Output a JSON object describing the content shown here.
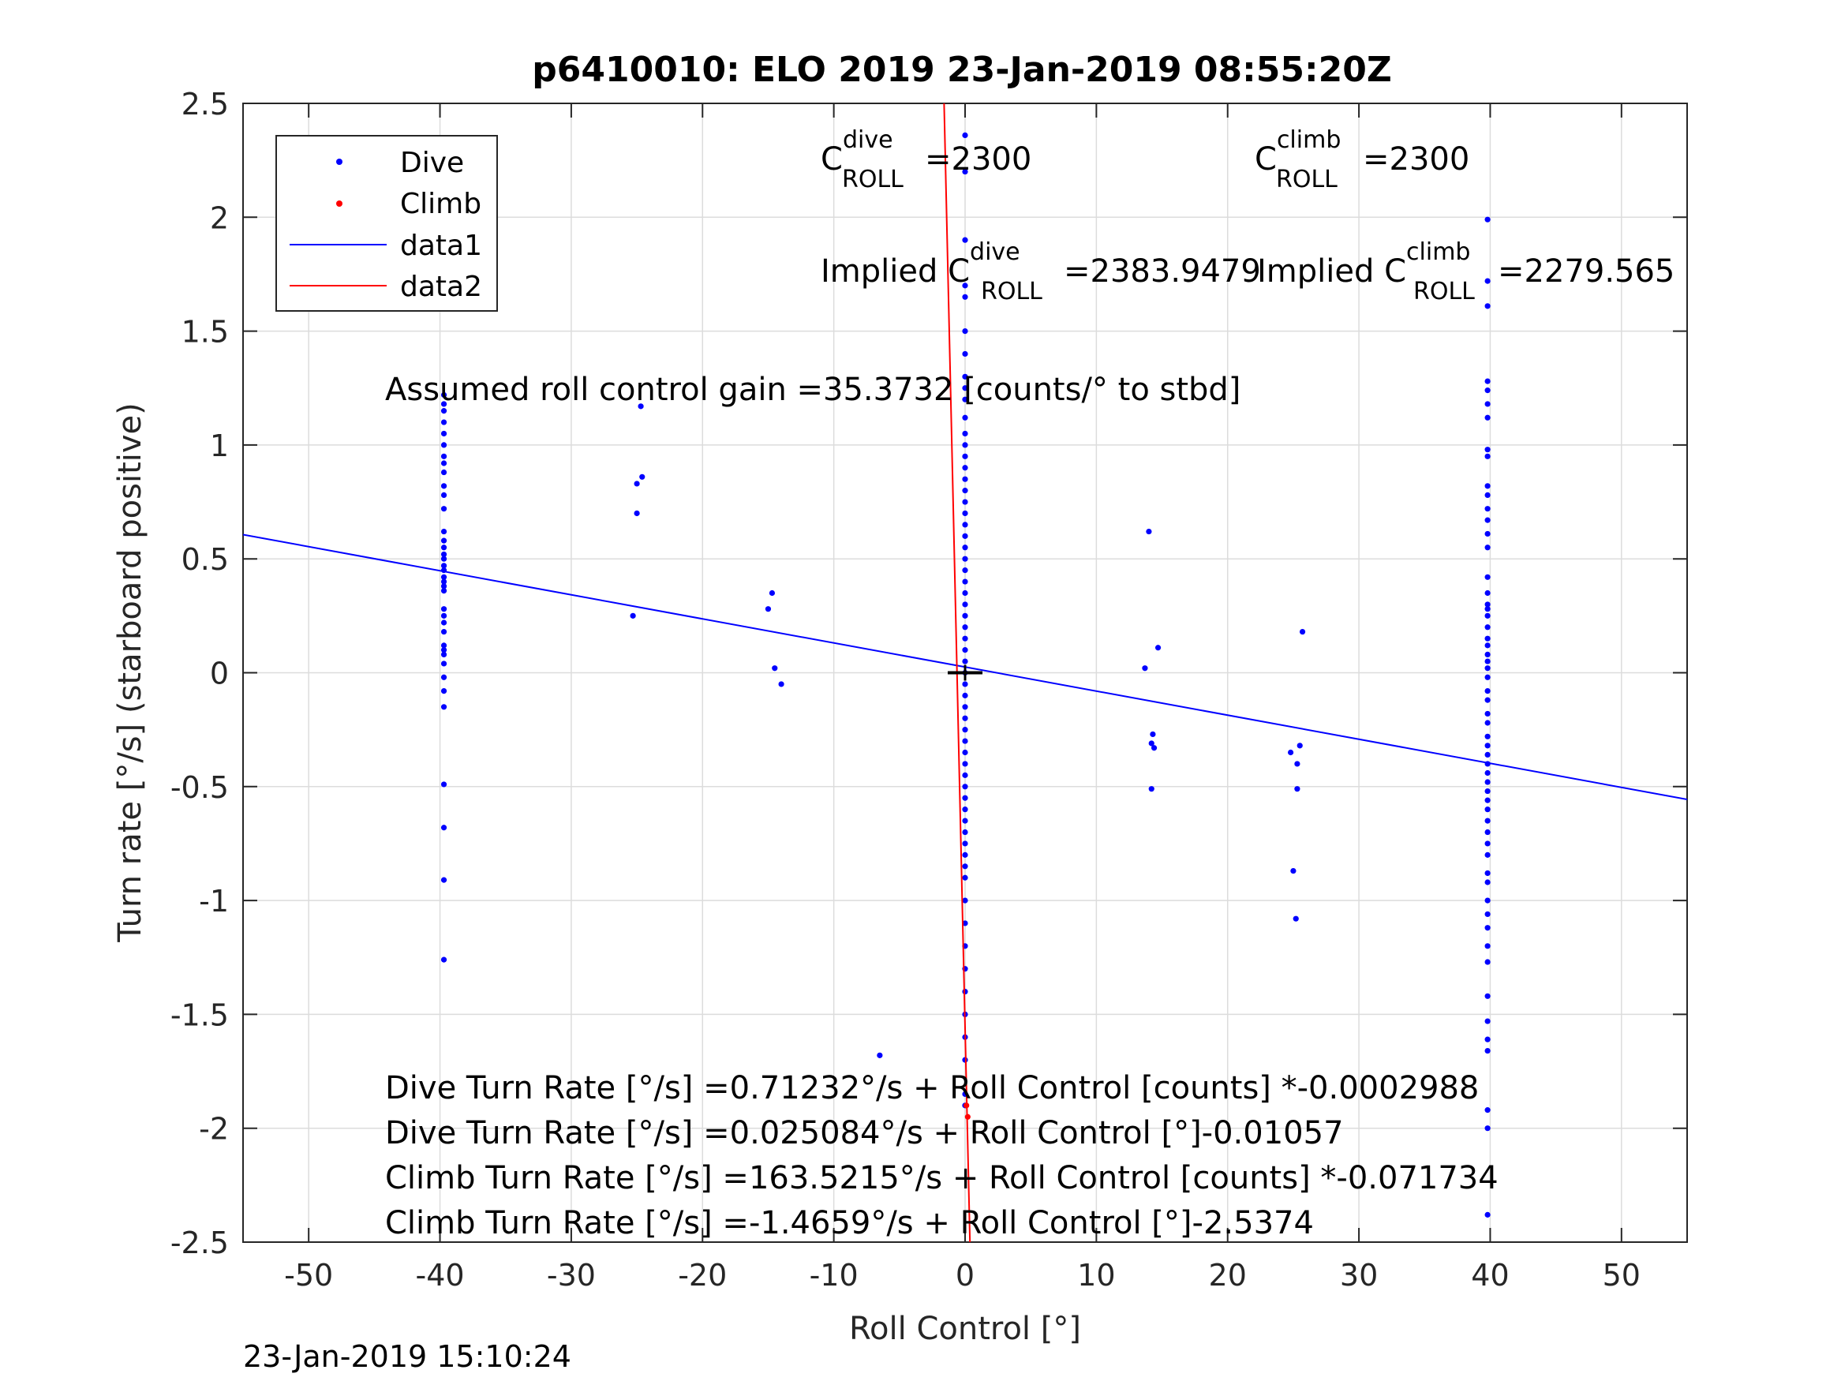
{
  "chart_data": {
    "type": "scatter",
    "title": "p6410010: ELO 2019 23-Jan-2019 08:55:20Z",
    "xlabel": "Roll Control [°]",
    "ylabel": "Turn rate [°/s] (starboard positive)",
    "xlim": [
      -55,
      55
    ],
    "ylim": [
      -2.5,
      2.5
    ],
    "xticks": [
      -50,
      -40,
      -30,
      -20,
      -10,
      0,
      10,
      20,
      30,
      40,
      50
    ],
    "yticks": [
      -2.5,
      -2,
      -1.5,
      -1,
      -0.5,
      0,
      0.5,
      1,
      1.5,
      2,
      2.5
    ],
    "xtick_labels": [
      "-50",
      "-40",
      "-30",
      "-20",
      "-10",
      "0",
      "10",
      "20",
      "30",
      "40",
      "50"
    ],
    "ytick_labels": [
      "-2.5",
      "-2",
      "-1.5",
      "-1",
      "-0.5",
      "0",
      "0.5",
      "1",
      "1.5",
      "2",
      "2.5"
    ],
    "grid": true,
    "legend_position": "top-left",
    "series": [
      {
        "name": "Dive",
        "kind": "scatter",
        "color": "#0000ff",
        "points": [
          [
            -39.7,
            1.22
          ],
          [
            -39.7,
            1.18
          ],
          [
            -39.7,
            1.15
          ],
          [
            -39.7,
            1.1
          ],
          [
            -39.7,
            1.05
          ],
          [
            -39.7,
            1.0
          ],
          [
            -39.7,
            0.95
          ],
          [
            -39.7,
            0.92
          ],
          [
            -39.7,
            0.88
          ],
          [
            -39.7,
            0.82
          ],
          [
            -39.7,
            0.78
          ],
          [
            -39.7,
            0.72
          ],
          [
            -39.7,
            0.62
          ],
          [
            -39.7,
            0.58
          ],
          [
            -39.7,
            0.55
          ],
          [
            -39.7,
            0.52
          ],
          [
            -39.7,
            0.5
          ],
          [
            -39.7,
            0.47
          ],
          [
            -39.7,
            0.45
          ],
          [
            -39.7,
            0.42
          ],
          [
            -39.7,
            0.4
          ],
          [
            -39.7,
            0.38
          ],
          [
            -39.7,
            0.36
          ],
          [
            -39.7,
            0.28
          ],
          [
            -39.7,
            0.25
          ],
          [
            -39.7,
            0.22
          ],
          [
            -39.7,
            0.18
          ],
          [
            -39.7,
            0.12
          ],
          [
            -39.7,
            0.1
          ],
          [
            -39.7,
            0.08
          ],
          [
            -39.7,
            0.04
          ],
          [
            -39.7,
            -0.02
          ],
          [
            -39.7,
            -0.08
          ],
          [
            -39.7,
            -0.15
          ],
          [
            -39.7,
            -0.49
          ],
          [
            -39.7,
            -0.68
          ],
          [
            -39.7,
            -0.91
          ],
          [
            -39.7,
            -1.26
          ],
          [
            -24.7,
            1.17
          ],
          [
            -24.6,
            0.86
          ],
          [
            -25.0,
            0.83
          ],
          [
            -25.0,
            0.7
          ],
          [
            -25.3,
            0.25
          ],
          [
            -14.7,
            0.35
          ],
          [
            -15.0,
            0.28
          ],
          [
            -14.5,
            0.02
          ],
          [
            -14.0,
            -0.05
          ],
          [
            -6.5,
            -1.68
          ],
          [
            0,
            2.36
          ],
          [
            0,
            2.2
          ],
          [
            0,
            1.9
          ],
          [
            0,
            1.7
          ],
          [
            0,
            1.65
          ],
          [
            0,
            1.5
          ],
          [
            0,
            1.4
          ],
          [
            0,
            1.3
          ],
          [
            0,
            1.25
          ],
          [
            0,
            1.2
          ],
          [
            0,
            1.12
          ],
          [
            0,
            1.05
          ],
          [
            0,
            1.0
          ],
          [
            0,
            0.95
          ],
          [
            0,
            0.9
          ],
          [
            0,
            0.85
          ],
          [
            0,
            0.8
          ],
          [
            0,
            0.75
          ],
          [
            0,
            0.7
          ],
          [
            0,
            0.65
          ],
          [
            0,
            0.6
          ],
          [
            0,
            0.55
          ],
          [
            0,
            0.5
          ],
          [
            0,
            0.45
          ],
          [
            0,
            0.4
          ],
          [
            0,
            0.35
          ],
          [
            0,
            0.3
          ],
          [
            0,
            0.25
          ],
          [
            0,
            0.2
          ],
          [
            0,
            0.15
          ],
          [
            0,
            0.1
          ],
          [
            0,
            0.05
          ],
          [
            0,
            0.0
          ],
          [
            0,
            -0.05
          ],
          [
            0,
            -0.1
          ],
          [
            0,
            -0.15
          ],
          [
            0,
            -0.2
          ],
          [
            0,
            -0.25
          ],
          [
            0,
            -0.3
          ],
          [
            0,
            -0.35
          ],
          [
            0,
            -0.4
          ],
          [
            0,
            -0.45
          ],
          [
            0,
            -0.5
          ],
          [
            0,
            -0.55
          ],
          [
            0,
            -0.6
          ],
          [
            0,
            -0.65
          ],
          [
            0,
            -0.7
          ],
          [
            0,
            -0.75
          ],
          [
            0,
            -0.8
          ],
          [
            0,
            -0.85
          ],
          [
            0,
            -0.9
          ],
          [
            0,
            -1.0
          ],
          [
            0,
            -1.1
          ],
          [
            0,
            -1.2
          ],
          [
            0,
            -1.3
          ],
          [
            0,
            -1.4
          ],
          [
            0,
            -1.5
          ],
          [
            0,
            -1.6
          ],
          [
            0,
            -1.7
          ],
          [
            0,
            -1.85
          ],
          [
            0,
            -1.9
          ],
          [
            14.0,
            0.62
          ],
          [
            13.7,
            0.02
          ],
          [
            14.7,
            0.11
          ],
          [
            14.3,
            -0.27
          ],
          [
            14.2,
            -0.31
          ],
          [
            14.4,
            -0.33
          ],
          [
            14.2,
            -0.51
          ],
          [
            25.7,
            0.18
          ],
          [
            24.8,
            -0.35
          ],
          [
            25.5,
            -0.32
          ],
          [
            25.3,
            -0.4
          ],
          [
            25.3,
            -0.51
          ],
          [
            25.0,
            -0.87
          ],
          [
            25.2,
            -1.08
          ],
          [
            39.8,
            1.99
          ],
          [
            39.8,
            1.72
          ],
          [
            39.8,
            1.61
          ],
          [
            39.8,
            1.28
          ],
          [
            39.8,
            1.24
          ],
          [
            39.8,
            1.18
          ],
          [
            39.8,
            1.12
          ],
          [
            39.8,
            0.98
          ],
          [
            39.8,
            0.95
          ],
          [
            39.8,
            0.82
          ],
          [
            39.8,
            0.78
          ],
          [
            39.8,
            0.72
          ],
          [
            39.8,
            0.67
          ],
          [
            39.8,
            0.61
          ],
          [
            39.8,
            0.55
          ],
          [
            39.8,
            0.42
          ],
          [
            39.8,
            0.35
          ],
          [
            39.8,
            0.3
          ],
          [
            39.8,
            0.28
          ],
          [
            39.8,
            0.25
          ],
          [
            39.8,
            0.2
          ],
          [
            39.8,
            0.15
          ],
          [
            39.8,
            0.12
          ],
          [
            39.8,
            0.08
          ],
          [
            39.8,
            0.05
          ],
          [
            39.8,
            0.02
          ],
          [
            39.8,
            -0.02
          ],
          [
            39.8,
            -0.08
          ],
          [
            39.8,
            -0.12
          ],
          [
            39.8,
            -0.18
          ],
          [
            39.8,
            -0.22
          ],
          [
            39.8,
            -0.28
          ],
          [
            39.8,
            -0.32
          ],
          [
            39.8,
            -0.36
          ],
          [
            39.8,
            -0.4
          ],
          [
            39.8,
            -0.44
          ],
          [
            39.8,
            -0.48
          ],
          [
            39.8,
            -0.52
          ],
          [
            39.8,
            -0.56
          ],
          [
            39.8,
            -0.6
          ],
          [
            39.8,
            -0.65
          ],
          [
            39.8,
            -0.7
          ],
          [
            39.8,
            -0.75
          ],
          [
            39.8,
            -0.8
          ],
          [
            39.8,
            -0.88
          ],
          [
            39.8,
            -0.92
          ],
          [
            39.8,
            -1.0
          ],
          [
            39.8,
            -1.06
          ],
          [
            39.8,
            -1.12
          ],
          [
            39.8,
            -1.2
          ],
          [
            39.8,
            -1.27
          ],
          [
            39.8,
            -1.42
          ],
          [
            39.8,
            -1.53
          ],
          [
            39.8,
            -1.61
          ],
          [
            39.8,
            -1.66
          ],
          [
            39.8,
            -1.92
          ],
          [
            39.8,
            -2.0
          ],
          [
            39.8,
            -2.38
          ]
        ]
      },
      {
        "name": "Climb",
        "kind": "scatter",
        "color": "#ff0000",
        "points": [
          [
            0.1,
            -1.9
          ],
          [
            0.2,
            -1.95
          ]
        ]
      },
      {
        "name": "data1",
        "kind": "line",
        "color": "#0000ff",
        "points": [
          [
            -55,
            0.6065
          ],
          [
            55,
            -0.5562
          ]
        ]
      },
      {
        "name": "data2",
        "kind": "line",
        "color": "#ff0000",
        "points": [
          [
            -1.6,
            2.5
          ],
          [
            0.37,
            -2.5
          ]
        ]
      }
    ],
    "center_marker": [
      0,
      0
    ],
    "annotations": {
      "c_dive_sym": "C",
      "c_dive_sup": "dive",
      "c_dive_sub": "ROLL",
      "c_dive_val": "=2300",
      "c_climb_sym": "C",
      "c_climb_sup": "climb",
      "c_climb_sub": "ROLL",
      "c_climb_val": "=2300",
      "impl_dive_prefix": "Implied C",
      "impl_dive_sup": "dive",
      "impl_dive_sub": "ROLL",
      "impl_dive_val": "=2383.9479",
      "impl_climb_prefix": "Implied C",
      "impl_climb_sup": "climb",
      "impl_climb_sub": "ROLL",
      "impl_climb_val": "=2279.565",
      "gain": "Assumed roll control gain =35.3732 [counts/° to stbd]",
      "fit1": "Dive Turn Rate [°/s] =0.71232°/s + Roll Control [counts] *-0.0002988",
      "fit2": "Dive Turn Rate [°/s] =0.025084°/s + Roll Control [°]-0.01057",
      "fit3": "Climb Turn Rate [°/s] =163.5215°/s + Roll Control [counts] *-0.071734",
      "fit4": "Climb Turn Rate [°/s] =-1.4659°/s + Roll Control [°]-2.5374"
    },
    "footer_timestamp": "23-Jan-2019 15:10:24"
  }
}
